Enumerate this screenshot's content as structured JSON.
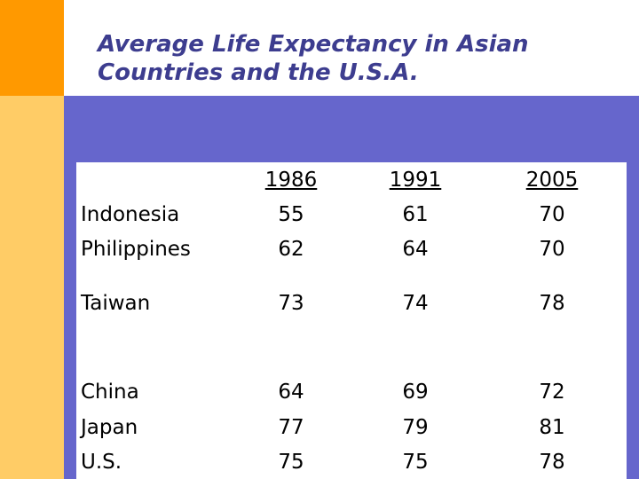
{
  "colors": {
    "orange": "#FF9900",
    "yellow": "#FFCC66",
    "band": "#6666CC",
    "title": "#3D3D8F"
  },
  "chart_data": {
    "type": "table",
    "title": "Average Life Expectancy in Asian Countries and the U.S.A.",
    "title_lines": [
      "Average Life Expectancy in Asian",
      "Countries and the U.S.A."
    ],
    "columns": [
      "1986",
      "1991",
      "2005"
    ],
    "rows": [
      {
        "country": "Indonesia",
        "values": [
          "55",
          "61",
          "70"
        ]
      },
      {
        "country": "Philippines",
        "values": [
          "62",
          "64",
          "70"
        ]
      },
      {
        "country": "Taiwan",
        "values": [
          "73",
          "74",
          "78"
        ]
      },
      {
        "country": "China",
        "values": [
          "64",
          "69",
          "72"
        ]
      },
      {
        "country": "Japan",
        "values": [
          "77",
          "79",
          "81"
        ]
      },
      {
        "country": "U.S.",
        "values": [
          "75",
          "75",
          "78"
        ]
      }
    ]
  }
}
